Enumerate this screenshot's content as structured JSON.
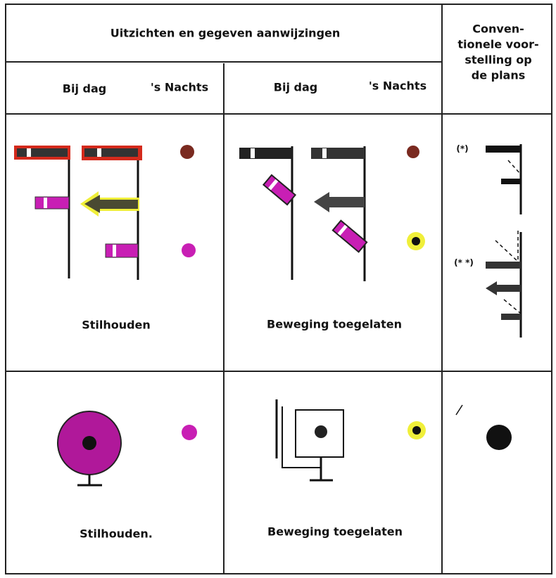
{
  "header": {
    "title": "Uitzichten en gegeven aanwijzingen",
    "conventional": [
      "Conven-",
      "tionele voor-",
      "stelling op",
      "de plans"
    ]
  },
  "subheaders": [
    "Bij dag",
    "'s Nachts",
    "Bij dag",
    "'s Nachts"
  ],
  "rows": [
    {
      "captions": [
        "Stilhouden",
        "Beweging toegelaten"
      ]
    },
    {
      "captions": [
        "Stilhouden.",
        "Beweging toegelaten"
      ]
    }
  ],
  "annotations": [
    "(*)",
    "(* *)"
  ]
}
